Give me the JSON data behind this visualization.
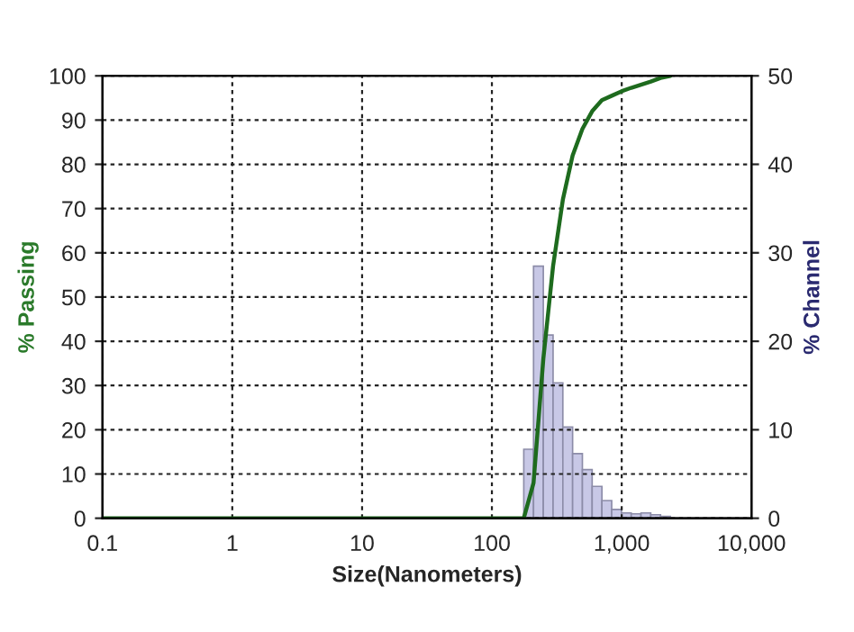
{
  "chart_data": {
    "type": "line",
    "xlabel": "Size(Nanometers)",
    "ylabel": "% Passing",
    "y2label": "% Channel",
    "log": "x",
    "xlim": [
      0.1,
      10000
    ],
    "xticks": [
      0.1,
      1,
      10,
      100,
      {
        "value": 1000,
        "label": "1,000"
      },
      {
        "value": 10000,
        "label": "10,000"
      }
    ],
    "ylim": [
      0,
      100
    ],
    "yticks": [
      0,
      10,
      20,
      30,
      40,
      50,
      60,
      70,
      80,
      90,
      100
    ],
    "y2lim": [
      0,
      50
    ],
    "y2ticks": [
      0,
      10,
      20,
      30,
      40,
      50
    ],
    "grid": true,
    "legend": false,
    "series": [
      {
        "type": "histogram",
        "axis": "y2",
        "color": "#c8c8e6",
        "bins": [
          176,
          209.3,
          248.9,
          296,
          352,
          418.6,
          497.8,
          592,
          704,
          837.2,
          995.6,
          1184,
          1408,
          1674,
          1991,
          2368
        ],
        "values": [
          7.8,
          28.5,
          20.7,
          15.3,
          10.3,
          7.3,
          5.5,
          3.6,
          2.0,
          1.0,
          0.6,
          0.5,
          0.6,
          0.4,
          0.2
        ]
      },
      {
        "color": "#1e6b1e",
        "x": [
          0.1,
          100,
          176,
          209.3,
          248.9,
          296,
          352,
          418.6,
          497.8,
          592,
          704,
          837.2,
          995.6,
          1184,
          1408,
          1674,
          1991,
          2368
        ],
        "values": [
          0,
          0,
          0,
          8,
          36,
          57,
          72,
          82,
          88,
          92,
          94.5,
          95.5,
          96.5,
          97.3,
          98,
          98.7,
          99.5,
          100
        ]
      }
    ]
  }
}
